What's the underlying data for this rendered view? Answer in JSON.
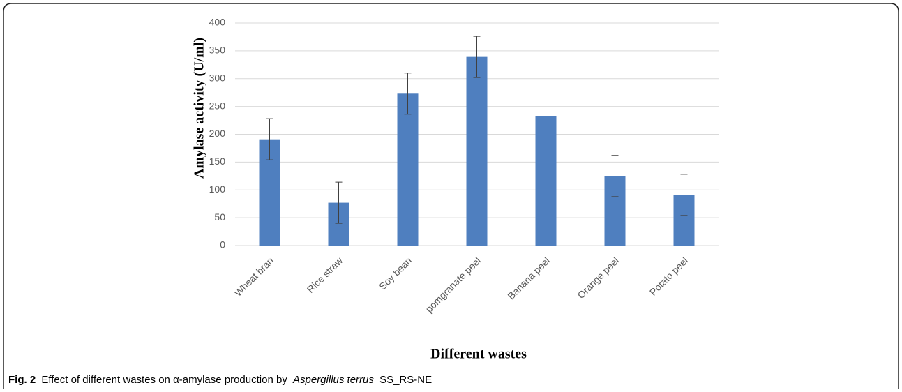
{
  "chart_data": {
    "type": "bar",
    "y_label": "Amylase activity (U/ml)",
    "x_label": "Different wastes",
    "categories": [
      "Wheat bran",
      "Rice straw",
      "Soy bean",
      "pomgranate peel",
      "Banana peel",
      "Orange peel",
      "Potato peel"
    ],
    "values": [
      191,
      77,
      273,
      339,
      232,
      125,
      91
    ],
    "errors": [
      37,
      37,
      37,
      37,
      37,
      37,
      37
    ],
    "color": "#4f7fbf",
    "ylim": [
      0,
      400
    ],
    "yticks": [
      0,
      50,
      100,
      150,
      200,
      250,
      300,
      350,
      400
    ],
    "grid": true
  },
  "caption": {
    "label": "Fig. 2",
    "text": "Effect of different wastes on α-amylase production by",
    "species": "Aspergillus terrus",
    "strain": "SS_RS-NE"
  }
}
